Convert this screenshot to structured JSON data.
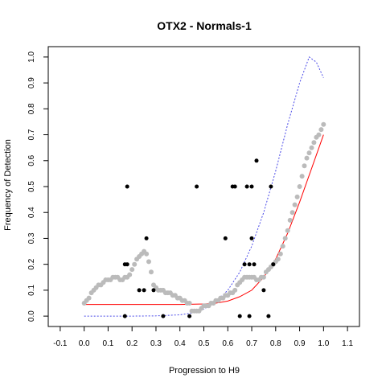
{
  "chart_data": {
    "type": "scatter",
    "title": "OTX2 - Normals-1",
    "xlabel": "Progression to H9",
    "ylabel": "Frequency of Detection",
    "xlim": [
      -0.15,
      1.15
    ],
    "ylim": [
      -0.04,
      1.04
    ],
    "xticks": [
      -0.1,
      0.0,
      0.1,
      0.2,
      0.3,
      0.4,
      0.5,
      0.6,
      0.7,
      0.8,
      0.9,
      1.0,
      1.1
    ],
    "xtick_labels": [
      "-0.1",
      "0.0",
      "0.1",
      "0.2",
      "0.3",
      "0.4",
      "0.5",
      "0.6",
      "0.7",
      "0.8",
      "0.9",
      "1.0",
      "1.1"
    ],
    "yticks": [
      0.0,
      0.1,
      0.2,
      0.3,
      0.4,
      0.5,
      0.6,
      0.7,
      0.8,
      0.9,
      1.0
    ],
    "ytick_labels": [
      "0.0",
      "0.1",
      "0.2",
      "0.3",
      "0.4",
      "0.5",
      "0.6",
      "0.7",
      "0.8",
      "0.9",
      "1.0"
    ],
    "grid": false,
    "colors": {
      "gray_points": "#bbbbbb",
      "black_points": "#000000",
      "red_curve": "#ff0000",
      "blue_curve": "#4a4ae8"
    },
    "series": [
      {
        "kind": "points",
        "color": "gray",
        "x": [
          0.0,
          0.01,
          0.02,
          0.03,
          0.04,
          0.05,
          0.06,
          0.07,
          0.08,
          0.09,
          0.1,
          0.11,
          0.12,
          0.13,
          0.14,
          0.15,
          0.16,
          0.17,
          0.18,
          0.19,
          0.2,
          0.21,
          0.22,
          0.23,
          0.24,
          0.25,
          0.26,
          0.27,
          0.28,
          0.29,
          0.3,
          0.31,
          0.32,
          0.33,
          0.34,
          0.35,
          0.36,
          0.37,
          0.38,
          0.39,
          0.4,
          0.41,
          0.42,
          0.43,
          0.44,
          0.45,
          0.46,
          0.47,
          0.48,
          0.49,
          0.5,
          0.51,
          0.52,
          0.53,
          0.54,
          0.55,
          0.56,
          0.57,
          0.58,
          0.59,
          0.6,
          0.61,
          0.62,
          0.63,
          0.64,
          0.65,
          0.66,
          0.67,
          0.68,
          0.69,
          0.7,
          0.71,
          0.72,
          0.73,
          0.74,
          0.75,
          0.76,
          0.77,
          0.78,
          0.79,
          0.8,
          0.81,
          0.82,
          0.83,
          0.84,
          0.85,
          0.86,
          0.87,
          0.88,
          0.89,
          0.9,
          0.91,
          0.92,
          0.93,
          0.94,
          0.95,
          0.96,
          0.97,
          0.98,
          0.99,
          1.0
        ],
        "y": [
          0.05,
          0.06,
          0.07,
          0.09,
          0.1,
          0.11,
          0.12,
          0.12,
          0.13,
          0.14,
          0.14,
          0.14,
          0.15,
          0.15,
          0.15,
          0.14,
          0.14,
          0.15,
          0.15,
          0.16,
          0.18,
          0.2,
          0.22,
          0.23,
          0.24,
          0.25,
          0.24,
          0.21,
          0.17,
          0.12,
          0.11,
          0.1,
          0.1,
          0.1,
          0.09,
          0.09,
          0.09,
          0.08,
          0.08,
          0.07,
          0.07,
          0.06,
          0.06,
          0.05,
          0.05,
          0.02,
          0.02,
          0.02,
          0.02,
          0.03,
          0.04,
          0.04,
          0.04,
          0.05,
          0.05,
          0.06,
          0.06,
          0.07,
          0.07,
          0.08,
          0.08,
          0.09,
          0.09,
          0.1,
          0.12,
          0.13,
          0.14,
          0.15,
          0.15,
          0.15,
          0.15,
          0.15,
          0.14,
          0.14,
          0.15,
          0.15,
          0.17,
          0.18,
          0.19,
          0.2,
          0.21,
          0.22,
          0.24,
          0.27,
          0.3,
          0.33,
          0.37,
          0.4,
          0.43,
          0.46,
          0.5,
          0.54,
          0.58,
          0.61,
          0.63,
          0.65,
          0.67,
          0.69,
          0.7,
          0.72,
          0.74
        ]
      },
      {
        "kind": "points",
        "color": "black",
        "x": [
          0.18,
          0.18,
          0.17,
          0.23,
          0.25,
          0.26,
          0.29,
          0.33,
          0.44,
          0.47,
          0.59,
          0.62,
          0.63,
          0.65,
          0.67,
          0.68,
          0.69,
          0.69,
          0.7,
          0.7,
          0.71,
          0.72,
          0.75,
          0.77,
          0.78,
          0.79,
          0.17
        ],
        "y": [
          0.2,
          0.5,
          0.0,
          0.1,
          0.1,
          0.3,
          0.1,
          0.0,
          0.0,
          0.5,
          0.3,
          0.5,
          0.5,
          0.0,
          0.2,
          0.5,
          0.0,
          0.2,
          0.5,
          0.3,
          0.2,
          0.6,
          0.1,
          0.0,
          0.5,
          0.2,
          0.2
        ]
      },
      {
        "kind": "line",
        "color": "red",
        "x": [
          0.0,
          0.1,
          0.2,
          0.3,
          0.4,
          0.5,
          0.55,
          0.6,
          0.65,
          0.7,
          0.75,
          0.8,
          0.85,
          0.9,
          0.95,
          1.0
        ],
        "y": [
          0.045,
          0.045,
          0.045,
          0.045,
          0.045,
          0.047,
          0.05,
          0.058,
          0.075,
          0.1,
          0.15,
          0.22,
          0.32,
          0.44,
          0.57,
          0.7
        ]
      },
      {
        "kind": "line",
        "color": "blue",
        "dashed": true,
        "x": [
          0.0,
          0.1,
          0.2,
          0.3,
          0.4,
          0.45,
          0.5,
          0.55,
          0.6,
          0.65,
          0.7,
          0.75,
          0.8,
          0.85,
          0.9,
          0.94,
          0.97,
          1.0
        ],
        "y": [
          0.0,
          0.0,
          0.0,
          0.001,
          0.005,
          0.012,
          0.027,
          0.055,
          0.1,
          0.17,
          0.27,
          0.4,
          0.56,
          0.74,
          0.9,
          1.0,
          0.98,
          0.92
        ]
      }
    ]
  }
}
